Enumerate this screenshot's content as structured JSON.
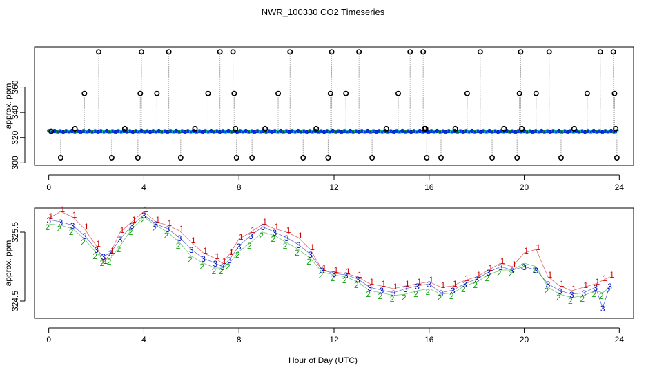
{
  "title": "NWR_100330  CO2 Timeseries",
  "xlabel": "Hour of Day (UTC)",
  "colors": {
    "series_1": "#d00000",
    "series_2": "#10a010",
    "series_3": "#0010c0",
    "circles": "#000000",
    "flat_line": "#0030e0",
    "cyan_marks": "#00c8d8",
    "spike_lines": "#9a9a9a"
  },
  "chart_data": [
    {
      "type": "scatter",
      "panel": "top",
      "title": "NWR_100330  CO2 Timeseries",
      "ylabel": "approx. ppm",
      "xlim": [
        -0.6,
        24.6
      ],
      "ylim": [
        298,
        392
      ],
      "xticks": [
        "0",
        "4",
        "8",
        "12",
        "16",
        "20",
        "24"
      ],
      "yticks": [
        "300",
        "320",
        "340",
        "360"
      ],
      "baseline": 325,
      "baseline_x": [
        0.0,
        23.9
      ],
      "x": [
        0.1,
        0.5,
        1.1,
        1.5,
        2.1,
        2.65,
        3.2,
        3.75,
        3.85,
        3.9,
        4.55,
        5.05,
        5.55,
        6.15,
        6.7,
        7.2,
        7.75,
        7.8,
        7.85,
        7.9,
        8.55,
        9.1,
        9.65,
        10.15,
        10.7,
        11.25,
        11.75,
        11.85,
        11.9,
        12.5,
        13.05,
        13.6,
        14.2,
        14.7,
        15.2,
        15.75,
        15.8,
        15.85,
        15.9,
        16.5,
        17.1,
        17.6,
        18.15,
        18.65,
        19.15,
        19.7,
        19.8,
        19.85,
        19.9,
        20.5,
        21.05,
        21.55,
        22.1,
        22.65,
        23.2,
        23.75,
        23.8,
        23.85,
        23.9
      ],
      "y": [
        325,
        304,
        327,
        355,
        388,
        304,
        327,
        304,
        355,
        388,
        355,
        388,
        304,
        327,
        355,
        388,
        388,
        355,
        327,
        304,
        304,
        327,
        355,
        388,
        304,
        327,
        304,
        355,
        388,
        355,
        388,
        304,
        327,
        355,
        388,
        388,
        327,
        327,
        304,
        304,
        327,
        355,
        388,
        304,
        327,
        304,
        355,
        388,
        327,
        355,
        388,
        304,
        327,
        355,
        388,
        388,
        355,
        327,
        304
      ]
    },
    {
      "type": "line",
      "panel": "bottom",
      "ylabel": "approx. ppm",
      "xlim": [
        -0.6,
        24.6
      ],
      "ylim": [
        324.25,
        325.85
      ],
      "xticks": [
        "0",
        "4",
        "8",
        "12",
        "16",
        "20",
        "24"
      ],
      "yticks": [
        "324.5",
        "325.5"
      ],
      "marker_labels": [
        "1",
        "2",
        "3"
      ],
      "x": [
        0.0,
        0.5,
        1.0,
        1.5,
        2.0,
        2.3,
        2.6,
        3.0,
        3.5,
        4.0,
        4.5,
        5.0,
        5.5,
        6.0,
        6.5,
        7.0,
        7.3,
        7.6,
        8.0,
        8.5,
        9.0,
        9.5,
        10.0,
        10.5,
        11.0,
        11.5,
        12.0,
        12.5,
        13.0,
        13.5,
        14.0,
        14.5,
        15.0,
        15.5,
        16.0,
        16.5,
        17.0,
        17.5,
        18.0,
        18.5,
        19.0,
        19.5,
        20.0,
        20.5,
        21.0,
        21.5,
        22.0,
        22.5,
        23.0,
        23.3,
        23.6
      ],
      "series": [
        {
          "name": "1",
          "values": [
            325.7,
            325.8,
            325.72,
            325.55,
            325.3,
            325.05,
            325.2,
            325.5,
            325.65,
            325.8,
            325.65,
            325.6,
            325.52,
            325.35,
            325.2,
            325.12,
            325.05,
            325.18,
            325.4,
            325.5,
            325.62,
            325.55,
            325.5,
            325.42,
            325.25,
            324.95,
            324.92,
            324.9,
            324.85,
            324.75,
            324.72,
            324.68,
            324.72,
            324.75,
            324.78,
            324.7,
            324.72,
            324.8,
            324.85,
            324.95,
            325.05,
            325.0,
            325.2,
            325.25,
            324.85,
            324.72,
            324.65,
            324.7,
            324.75,
            324.8,
            324.85
          ]
        },
        {
          "name": "2",
          "values": [
            325.62,
            325.6,
            325.55,
            325.4,
            325.2,
            325.1,
            325.12,
            325.3,
            325.55,
            325.72,
            325.6,
            325.5,
            325.35,
            325.15,
            325.05,
            324.98,
            324.98,
            325.05,
            325.22,
            325.35,
            325.5,
            325.45,
            325.35,
            325.25,
            325.12,
            324.92,
            324.88,
            324.85,
            324.78,
            324.65,
            324.62,
            324.58,
            324.6,
            324.65,
            324.68,
            324.6,
            324.62,
            324.72,
            324.78,
            324.88,
            324.95,
            324.95,
            325.05,
            325.0,
            324.7,
            324.6,
            324.55,
            324.58,
            324.65,
            324.62,
            324.7
          ]
        },
        {
          "name": "3",
          "values": [
            325.68,
            325.65,
            325.6,
            325.45,
            325.25,
            325.15,
            325.2,
            325.4,
            325.6,
            325.75,
            325.62,
            325.55,
            325.42,
            325.25,
            325.12,
            325.05,
            325.0,
            325.1,
            325.3,
            325.45,
            325.58,
            325.5,
            325.42,
            325.32,
            325.18,
            324.95,
            324.9,
            324.88,
            324.82,
            324.7,
            324.66,
            324.62,
            324.68,
            324.72,
            324.75,
            324.62,
            324.66,
            324.75,
            324.82,
            324.92,
            325.0,
            324.95,
            325.0,
            324.95,
            324.75,
            324.65,
            324.6,
            324.62,
            324.7,
            324.4,
            324.72
          ]
        }
      ]
    }
  ]
}
